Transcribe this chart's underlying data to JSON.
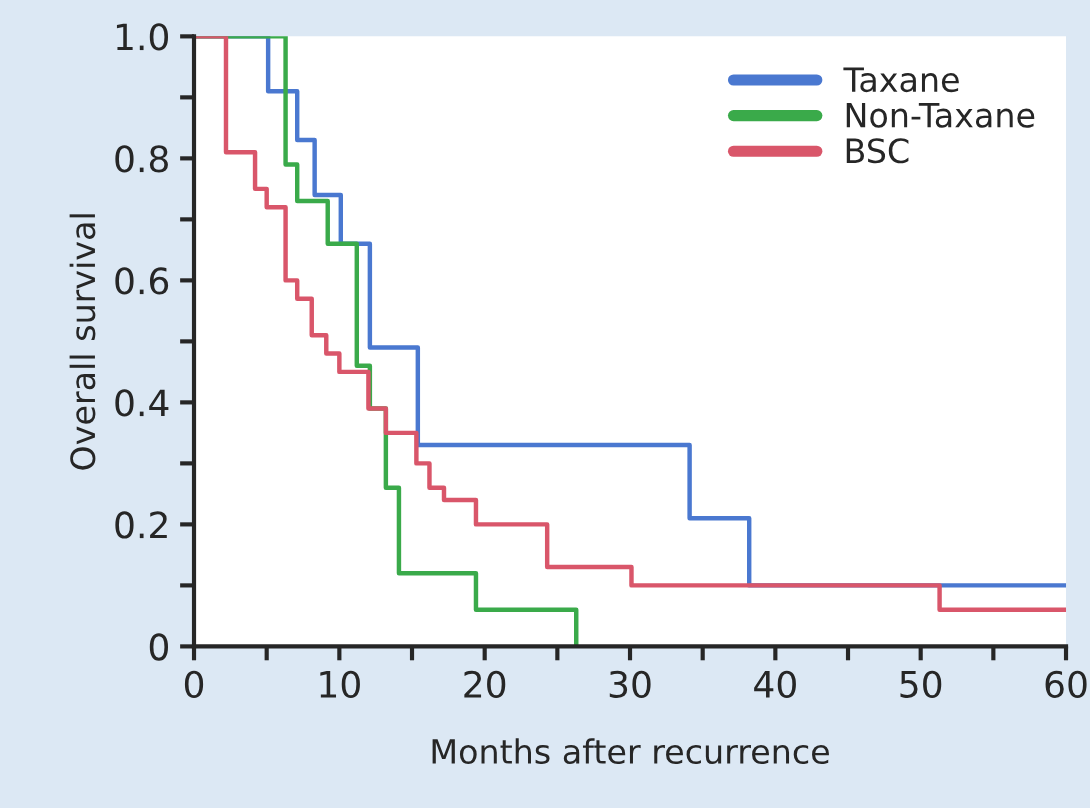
{
  "chart_data": {
    "type": "step",
    "xlabel": "Months after recurrence",
    "ylabel": "Overall survival",
    "xlim": [
      0,
      60
    ],
    "ylim": [
      0,
      1.0
    ],
    "xticks": [
      0,
      {
        "value": 5,
        "label": null
      },
      10,
      {
        "value": 15,
        "label": null
      },
      20,
      {
        "value": 25,
        "label": null
      },
      30,
      {
        "value": 35,
        "label": null
      },
      40,
      {
        "value": 45,
        "label": null
      },
      50,
      {
        "value": 55,
        "label": null
      },
      60
    ],
    "yticks": [
      0,
      {
        "value": 0.1,
        "label": null
      },
      {
        "value": 0.2,
        "label": "0.2"
      },
      {
        "value": 0.3,
        "label": null
      },
      {
        "value": 0.4,
        "label": "0.4"
      },
      {
        "value": 0.5,
        "label": null
      },
      {
        "value": 0.6,
        "label": "0.6"
      },
      {
        "value": 0.7,
        "label": null
      },
      {
        "value": 0.8,
        "label": "0.8"
      },
      {
        "value": 0.9,
        "label": null
      },
      {
        "value": 1.0,
        "label": "1.0"
      }
    ],
    "legend": "top right",
    "grid": false,
    "series": [
      {
        "name": "Taxane",
        "color": "#4a78d0",
        "x": [
          0,
          5.1,
          7.1,
          8.3,
          10.1,
          12.1,
          15.4,
          34.1,
          38.2,
          60
        ],
        "values": [
          1.0,
          0.91,
          0.83,
          0.74,
          0.66,
          0.49,
          0.33,
          0.21,
          0.1,
          0.1
        ]
      },
      {
        "name": "Non-Taxane",
        "color": "#3aaa4a",
        "x": [
          0,
          6.3,
          7.1,
          9.2,
          11.2,
          12.1,
          13.2,
          14.1,
          19.4,
          26.3
        ],
        "values": [
          1.0,
          0.79,
          0.73,
          0.66,
          0.46,
          0.39,
          0.26,
          0.12,
          0.06,
          0
        ]
      },
      {
        "name": "BSC",
        "color": "#d9566a",
        "x": [
          0,
          2.2,
          4.2,
          5.0,
          6.3,
          7.1,
          8.1,
          9.1,
          10.0,
          12.0,
          13.2,
          15.3,
          16.2,
          17.2,
          19.4,
          24.3,
          30.1,
          51.3,
          60
        ],
        "values": [
          1.0,
          0.81,
          0.75,
          0.72,
          0.6,
          0.57,
          0.51,
          0.48,
          0.45,
          0.39,
          0.35,
          0.3,
          0.26,
          0.24,
          0.2,
          0.13,
          0.1,
          0.06,
          0.06
        ]
      }
    ]
  }
}
